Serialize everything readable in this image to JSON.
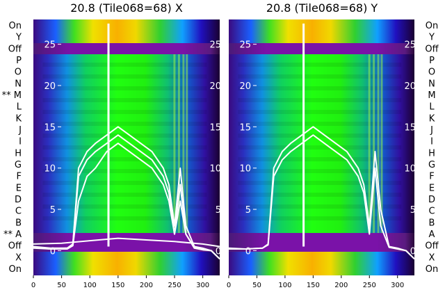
{
  "row_labels": [
    "On",
    "Y",
    "Off",
    "P",
    "O",
    "N",
    "M",
    "L",
    "K",
    "J",
    "I",
    "H",
    "G",
    "F",
    "E",
    "D",
    "C",
    "B",
    "A",
    "Off",
    "X",
    "On"
  ],
  "left_row_labels": [
    "On",
    "Y",
    "Off",
    "P",
    "O",
    "N",
    "** M",
    "L",
    "K",
    "J",
    "I",
    "H",
    "G",
    "F",
    "E",
    "D",
    "C",
    "B",
    "** A",
    "Off",
    "X",
    "On"
  ],
  "colors": {
    "background_band": "#6a0aa0",
    "overlay_line": "#ffffff"
  },
  "chart_data": [
    {
      "type": "heatmap",
      "title": "20.8 (Tile068=68) X",
      "xlim": [
        0,
        330
      ],
      "ylim": [
        -3,
        28
      ],
      "x_ticks": [
        0,
        50,
        100,
        150,
        200,
        250,
        300
      ],
      "y_ticks": [
        0,
        5,
        10,
        15,
        20,
        25
      ],
      "series": [
        {
          "x": [
            0,
            30,
            60,
            70,
            80,
            95,
            110,
            130,
            150,
            170,
            190,
            210,
            230,
            240,
            250,
            260,
            270,
            285,
            300,
            315,
            330
          ],
          "y": [
            0.5,
            0.3,
            0.3,
            0.8,
            10,
            12,
            13,
            14,
            15,
            14,
            13,
            12,
            10,
            8,
            3,
            10,
            3,
            0.5,
            0.3,
            0.0,
            -1.0
          ]
        },
        {
          "x": [
            0,
            30,
            60,
            70,
            80,
            95,
            110,
            130,
            150,
            170,
            190,
            210,
            230,
            240,
            250,
            260,
            270,
            285,
            300,
            315,
            330
          ],
          "y": [
            0.4,
            0.2,
            0.3,
            0.8,
            9,
            11,
            12,
            13,
            14,
            13,
            12,
            11,
            9,
            7,
            2,
            8,
            2,
            0.4,
            0.2,
            0.0,
            -1.0
          ]
        },
        {
          "x": [
            0,
            30,
            60,
            70,
            80,
            95,
            110,
            130,
            150,
            170,
            190,
            210,
            230,
            240,
            250,
            260,
            270,
            285,
            300,
            315,
            330
          ],
          "y": [
            0.3,
            0.2,
            0.2,
            0.6,
            6,
            9,
            10,
            12,
            13,
            12,
            11,
            10,
            8,
            6,
            2,
            6,
            2,
            0.3,
            0.1,
            0.0,
            -1.0
          ]
        },
        {
          "x": [
            0,
            50,
            100,
            150,
            200,
            250,
            300,
            330
          ],
          "y": [
            0.8,
            0.9,
            1.2,
            1.5,
            1.3,
            1.1,
            0.8,
            0.5
          ]
        }
      ]
    },
    {
      "type": "heatmap",
      "title": "20.8 (Tile068=68) Y",
      "xlim": [
        0,
        330
      ],
      "ylim": [
        -3,
        28
      ],
      "x_ticks": [
        0,
        50,
        100,
        150,
        200,
        250,
        300
      ],
      "y_ticks": [
        0,
        5,
        10,
        15,
        20,
        25
      ],
      "series": [
        {
          "x": [
            0,
            30,
            60,
            70,
            80,
            95,
            110,
            130,
            150,
            170,
            190,
            210,
            230,
            240,
            250,
            260,
            270,
            285,
            300,
            315,
            330
          ],
          "y": [
            0.3,
            0.2,
            0.3,
            0.8,
            10,
            12,
            13,
            14,
            15,
            14,
            13,
            12,
            10,
            8,
            3,
            12,
            5,
            0.5,
            0.3,
            0.0,
            -1.0
          ]
        },
        {
          "x": [
            0,
            30,
            60,
            70,
            80,
            95,
            110,
            130,
            150,
            170,
            190,
            210,
            230,
            240,
            250,
            260,
            270,
            285,
            300,
            315,
            330
          ],
          "y": [
            0.2,
            0.2,
            0.3,
            0.7,
            9,
            11,
            12,
            13,
            14,
            13,
            12,
            11,
            9,
            7,
            2,
            10,
            3,
            0.4,
            0.2,
            0.0,
            -1.0
          ]
        }
      ]
    }
  ]
}
